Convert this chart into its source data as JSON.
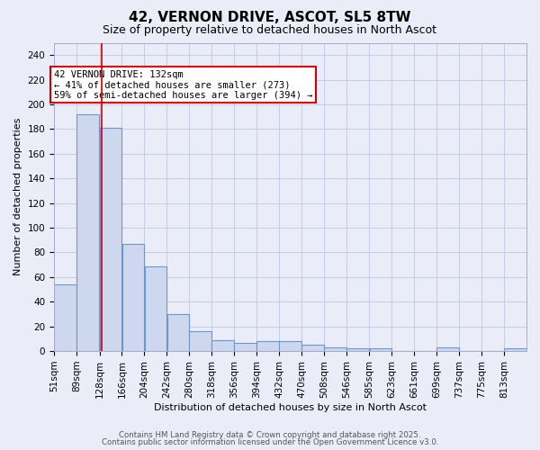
{
  "title": "42, VERNON DRIVE, ASCOT, SL5 8TW",
  "subtitle": "Size of property relative to detached houses in North Ascot",
  "xlabel": "Distribution of detached houses by size in North Ascot",
  "ylabel": "Number of detached properties",
  "bins": [
    51,
    89,
    128,
    166,
    204,
    242,
    280,
    318,
    356,
    394,
    432,
    470,
    508,
    546,
    585,
    623,
    661,
    699,
    737,
    775,
    813
  ],
  "bin_labels": [
    "51sqm",
    "89sqm",
    "128sqm",
    "166sqm",
    "204sqm",
    "242sqm",
    "280sqm",
    "318sqm",
    "356sqm",
    "394sqm",
    "432sqm",
    "470sqm",
    "508sqm",
    "546sqm",
    "585sqm",
    "623sqm",
    "661sqm",
    "699sqm",
    "737sqm",
    "775sqm",
    "813sqm"
  ],
  "values": [
    54,
    192,
    181,
    87,
    69,
    30,
    16,
    9,
    7,
    8,
    8,
    5,
    3,
    2,
    2,
    0,
    0,
    3,
    0,
    0,
    2
  ],
  "bar_color": "#cdd8ef",
  "bar_edge_color": "#6b97cc",
  "bar_edge_width": 0.8,
  "grid_color": "#c5cce8",
  "background_color": "#eaecf8",
  "red_line_x": 132,
  "ylim": [
    0,
    250
  ],
  "yticks": [
    0,
    20,
    40,
    60,
    80,
    100,
    120,
    140,
    160,
    180,
    200,
    220,
    240
  ],
  "annotation_text": "42 VERNON DRIVE: 132sqm\n← 41% of detached houses are smaller (273)\n59% of semi-detached houses are larger (394) →",
  "annotation_box_color": "#ffffff",
  "annotation_edge_color": "#cc0000",
  "title_fontsize": 11,
  "subtitle_fontsize": 9,
  "label_fontsize": 8,
  "tick_fontsize": 7.5,
  "annotation_fontsize": 7.5,
  "footer_text1": "Contains HM Land Registry data © Crown copyright and database right 2025.",
  "footer_text2": "Contains public sector information licensed under the Open Government Licence v3.0."
}
